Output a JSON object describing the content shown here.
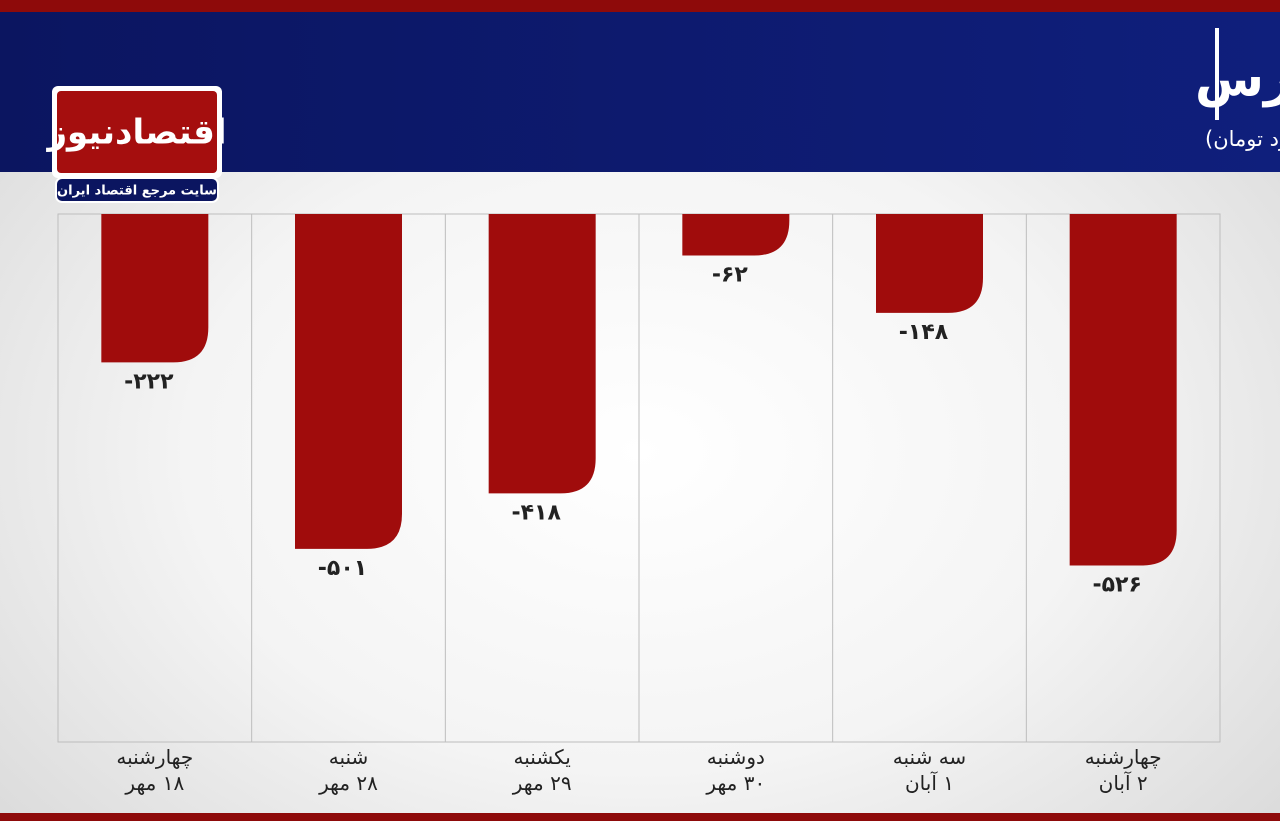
{
  "logo": {
    "name": "اقتصادنیوز",
    "tagline": "سایت مرجع اقتصاد ایران"
  },
  "chart_data": {
    "type": "bar",
    "title": "روند ورود و خروج پول حقیقی در بورس",
    "subtitle": "(واحد:میلیارد تومان)",
    "categories": [
      "چهارشنبه\n۱۸ مهر",
      "شنبه\n۲۸ مهر",
      "یکشنبه\n۲۹ مهر",
      "دوشنبه\n۳۰ مهر",
      "سه شنبه\n۱ آبان",
      "چهارشنبه\n۲ آبان"
    ],
    "values": [
      -222,
      -501,
      -418,
      -62,
      -148,
      -526
    ],
    "value_labels": [
      "-۲۲۲",
      "-۵۰۱",
      "-۴۱۸",
      "-۶۲",
      "-۱۴۸",
      "-۵۲۶"
    ],
    "color": "#a00c0c",
    "ylim": [
      -790,
      0
    ]
  }
}
